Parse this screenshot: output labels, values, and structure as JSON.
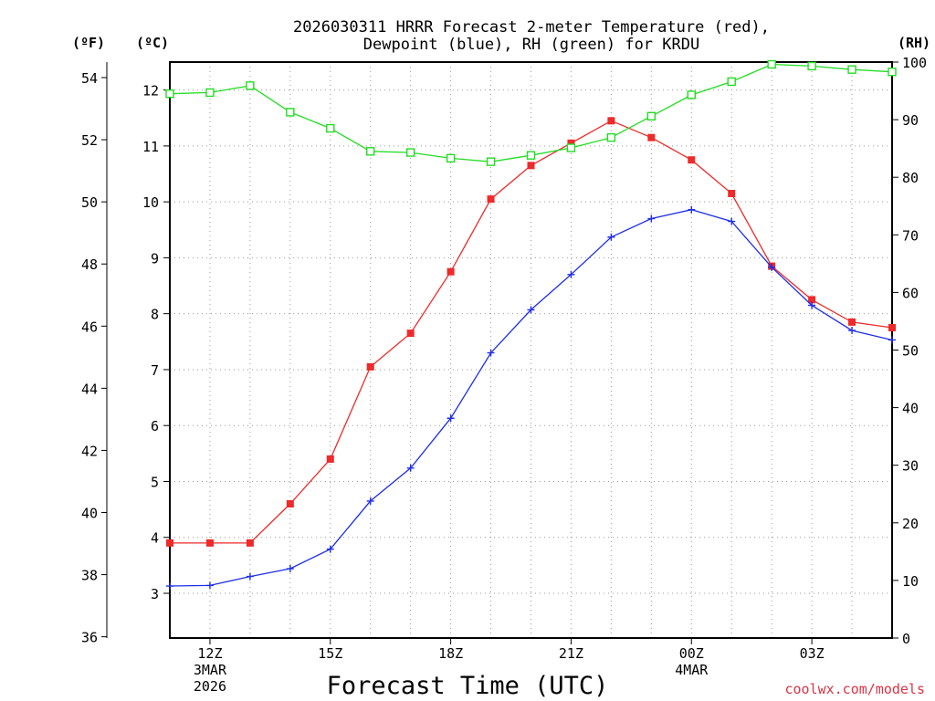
{
  "chart_data": {
    "type": "line",
    "title": [
      "2026030311 HRRR Forecast 2-meter Temperature (red),",
      "Dewpoint (blue), RH (green) for KRDU"
    ],
    "xlabel": "Forecast Time (UTC)",
    "credit": "coolwx.com/models",
    "x_hours": [
      11,
      12,
      13,
      14,
      15,
      16,
      17,
      18,
      19,
      20,
      21,
      22,
      23,
      24,
      25,
      26,
      27,
      28,
      29
    ],
    "x_range": [
      11,
      29
    ],
    "x_ticks": [
      {
        "hour": 12,
        "lines": [
          "12Z",
          "3MAR",
          "2026"
        ]
      },
      {
        "hour": 15,
        "lines": [
          "15Z"
        ]
      },
      {
        "hour": 18,
        "lines": [
          "18Z"
        ]
      },
      {
        "hour": 21,
        "lines": [
          "21Z"
        ]
      },
      {
        "hour": 24,
        "lines": [
          "00Z",
          "4MAR"
        ]
      },
      {
        "hour": 27,
        "lines": [
          "03Z"
        ]
      }
    ],
    "axes": {
      "celsius": {
        "label": "(ºC)",
        "range": [
          2.2,
          12.5
        ],
        "ticks": [
          3,
          4,
          5,
          6,
          7,
          8,
          9,
          10,
          11,
          12
        ]
      },
      "fahrenheit": {
        "label": "(ºF)",
        "range": [
          35.96,
          54.5
        ],
        "ticks": [
          36,
          38,
          40,
          42,
          44,
          46,
          48,
          50,
          52,
          54
        ]
      },
      "rh": {
        "label": "(RH)",
        "range": [
          0,
          100
        ],
        "ticks": [
          0,
          10,
          20,
          30,
          40,
          50,
          60,
          70,
          80,
          90,
          100
        ]
      }
    },
    "series": [
      {
        "name": "Temperature",
        "unit": "C",
        "color": "#ee2a2a",
        "marker": "filled-square",
        "values": [
          3.9,
          3.9,
          3.9,
          4.6,
          5.4,
          7.05,
          7.65,
          8.75,
          10.05,
          10.65,
          11.05,
          11.45,
          11.15,
          10.75,
          10.15,
          8.85,
          8.25,
          7.85,
          7.75
        ]
      },
      {
        "name": "Dewpoint",
        "unit": "C",
        "color": "#1f2fe8",
        "marker": "plus",
        "values": [
          3.13,
          3.14,
          3.3,
          3.44,
          3.79,
          4.65,
          5.24,
          6.13,
          7.3,
          8.07,
          8.7,
          9.37,
          9.7,
          9.86,
          9.65,
          8.83,
          8.15,
          7.7,
          7.53
        ]
      },
      {
        "name": "RH",
        "unit": "%",
        "color": "#22dd22",
        "marker": "open-square",
        "values": [
          94.5,
          94.7,
          95.9,
          91.3,
          88.5,
          84.5,
          84.3,
          83.3,
          82.7,
          83.8,
          85.1,
          86.9,
          90.6,
          94.3,
          96.6,
          99.6,
          99.3,
          98.7,
          98.3
        ]
      }
    ]
  }
}
